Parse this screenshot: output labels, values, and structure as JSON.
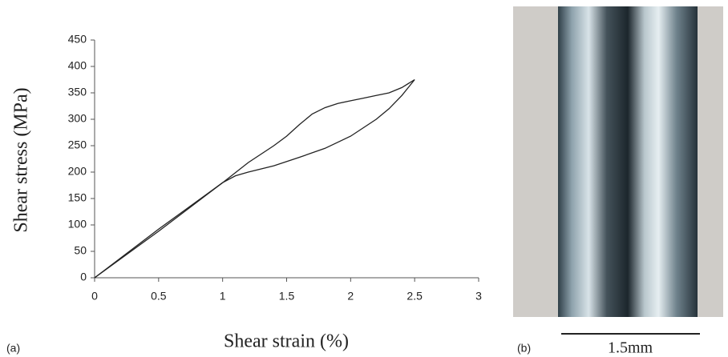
{
  "chart_data": {
    "type": "line",
    "x_label": "Shear strain (%)",
    "y_label": "Shear stress (MPa)",
    "series": [
      {
        "color": "#222222",
        "x": [
          0,
          0.5,
          1.0,
          1.2,
          1.4,
          1.5,
          1.6,
          1.7,
          1.8,
          1.9,
          2.0,
          2.1,
          2.2,
          2.3,
          2.4,
          2.5
        ],
        "values": [
          0,
          92,
          180,
          218,
          250,
          268,
          290,
          310,
          322,
          330,
          335,
          340,
          345,
          350,
          360,
          375
        ]
      },
      {
        "color": "#222222",
        "x": [
          2.5,
          2.4,
          2.3,
          2.2,
          2.0,
          1.8,
          1.6,
          1.4,
          1.2,
          1.1,
          1.0,
          0.5,
          0
        ],
        "values": [
          375,
          345,
          320,
          300,
          268,
          245,
          228,
          212,
          200,
          193,
          180,
          88,
          0
        ]
      }
    ],
    "xlim": [
      0,
      3
    ],
    "xticks": [
      0,
      0.5,
      1,
      1.5,
      2,
      2.5,
      3
    ],
    "ylim": [
      0,
      450
    ],
    "yticks": [
      0,
      50,
      100,
      150,
      200,
      250,
      300,
      350,
      400,
      450
    ]
  },
  "panels": {
    "a_label": "(a)",
    "b_label": "(b)",
    "scale_bar_label": "1.5mm"
  }
}
